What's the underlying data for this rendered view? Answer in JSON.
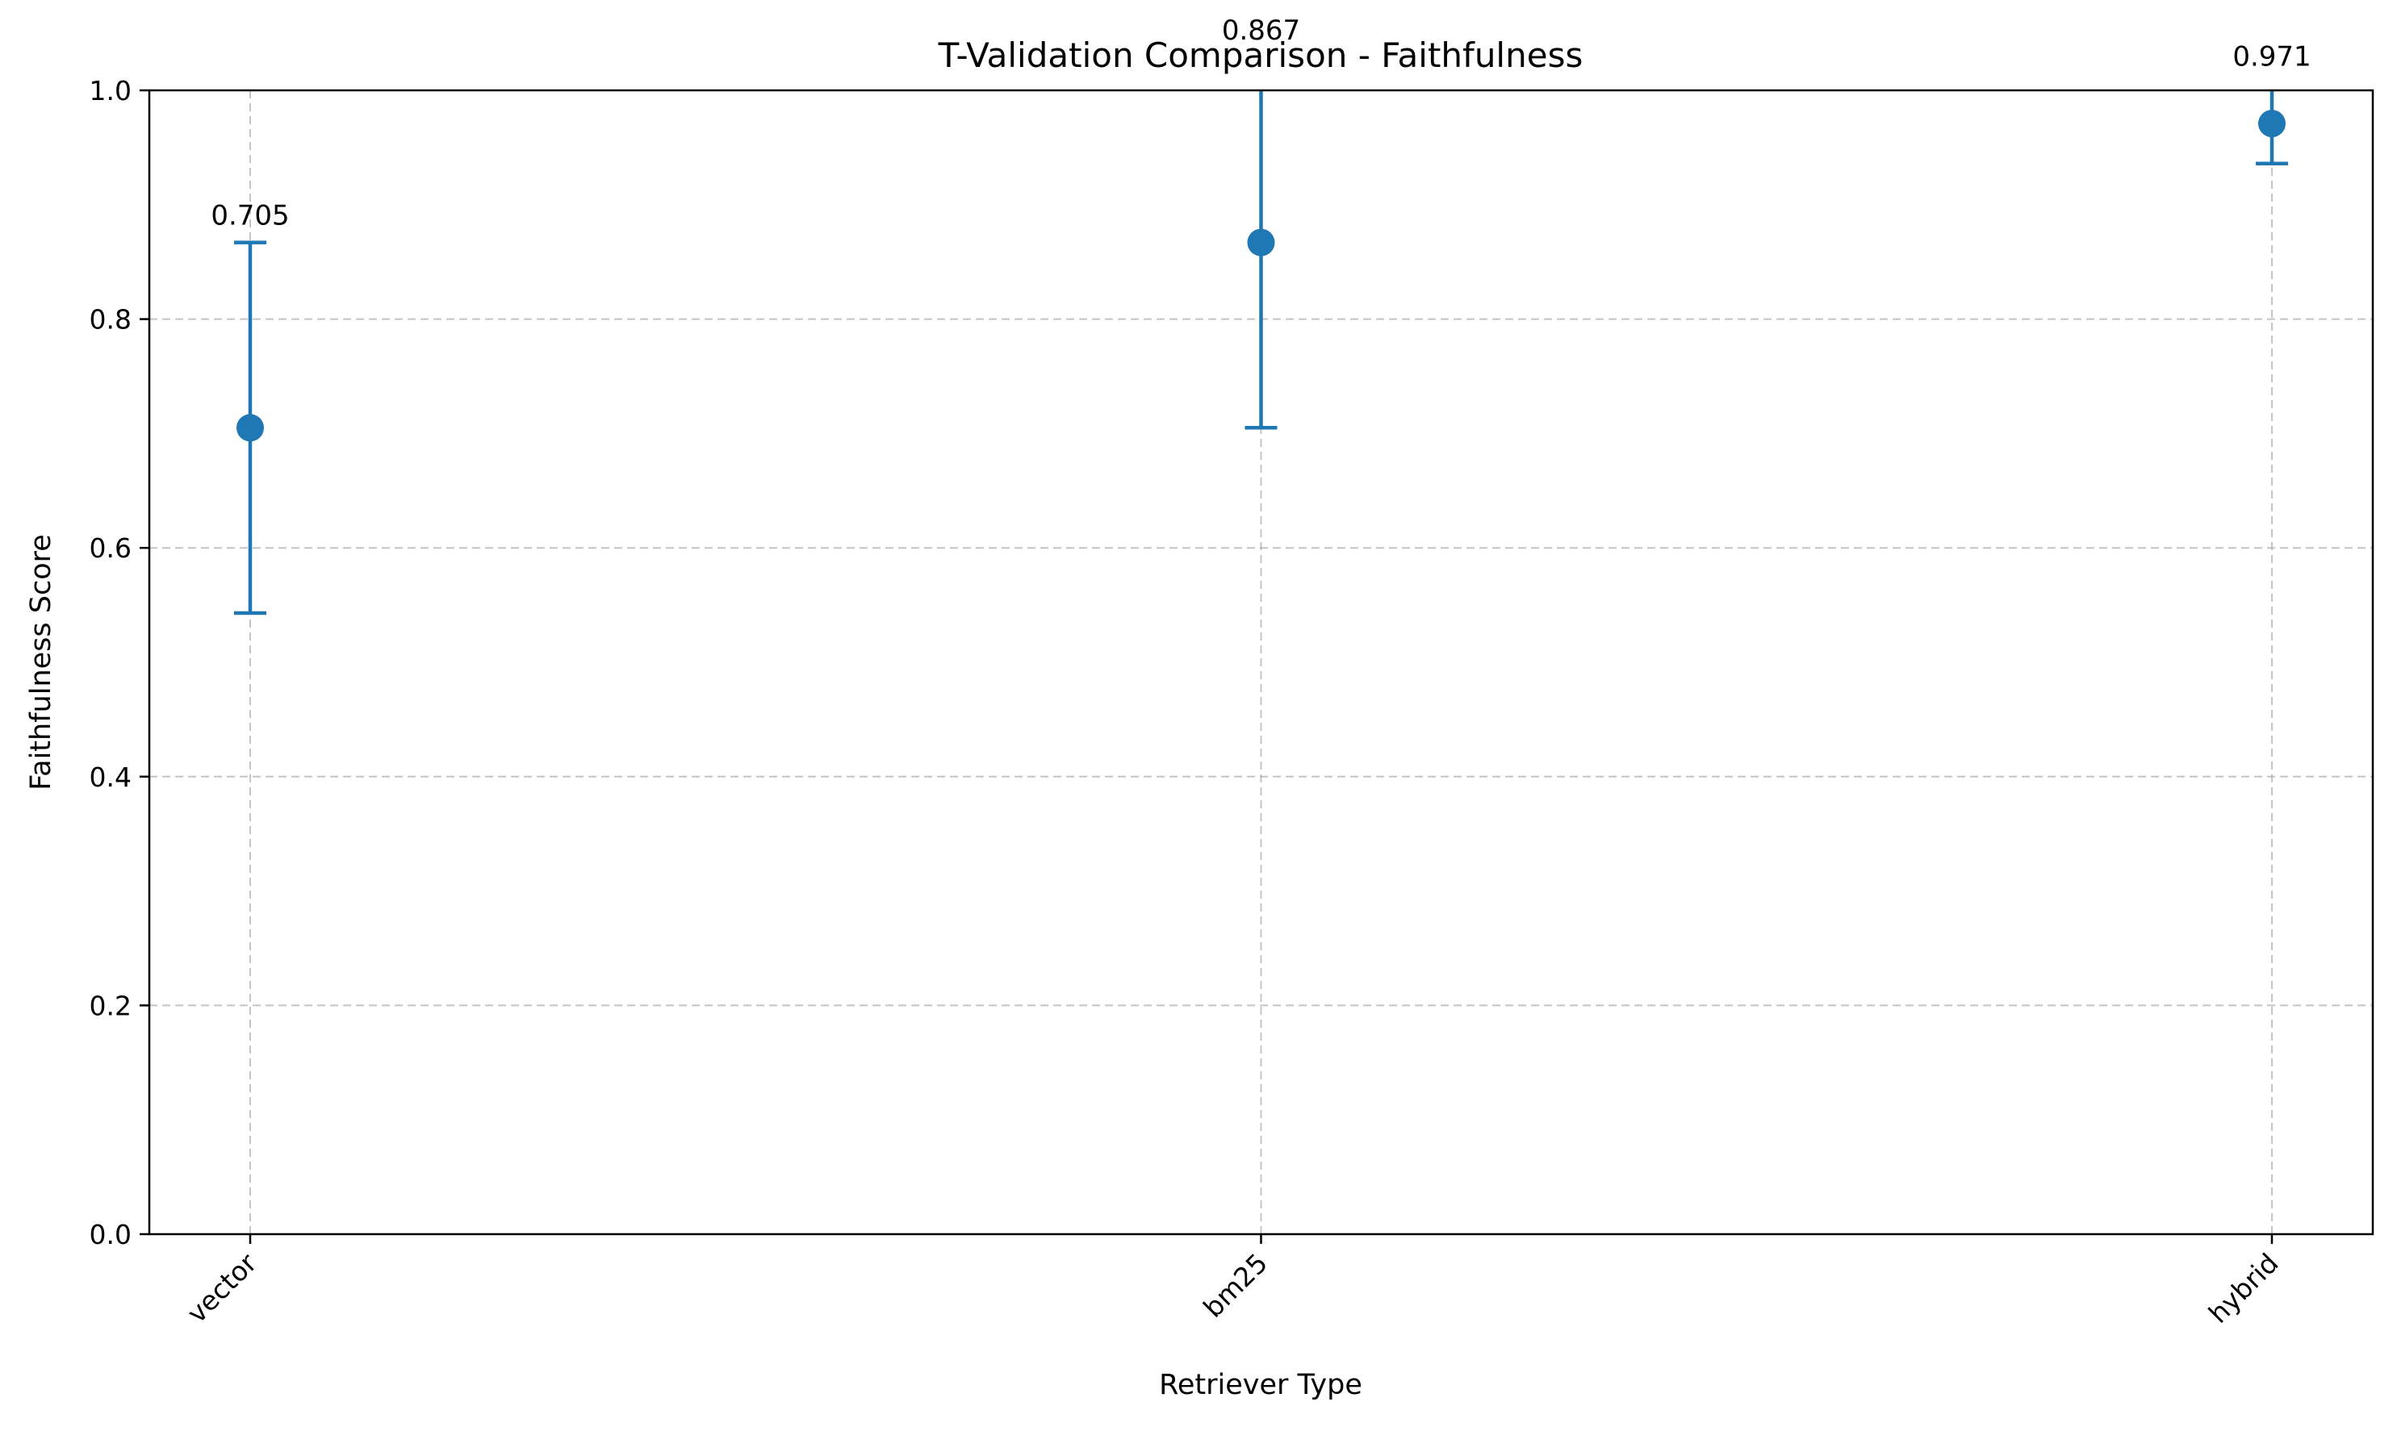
{
  "chart_data": {
    "type": "scatter",
    "title": "T-Validation Comparison - Faithfulness",
    "xlabel": "Retriever Type",
    "ylabel": "Faithfulness Score",
    "categories": [
      "vector",
      "bm25",
      "hybrid"
    ],
    "series": [
      {
        "values": [
          0.705,
          0.867,
          0.971
        ],
        "error": [
          0.162,
          0.162,
          0.035
        ],
        "color": "#1f77b4"
      }
    ],
    "data_labels": [
      "0.705",
      "0.867",
      "0.971"
    ],
    "ylim": [
      0,
      1
    ],
    "yticks": [
      0.0,
      0.2,
      0.4,
      0.6,
      0.8,
      1.0
    ],
    "ytick_labels": [
      "0.0",
      "0.2",
      "0.4",
      "0.6",
      "0.8",
      "1.0"
    ],
    "grid": true,
    "legend": "none"
  }
}
